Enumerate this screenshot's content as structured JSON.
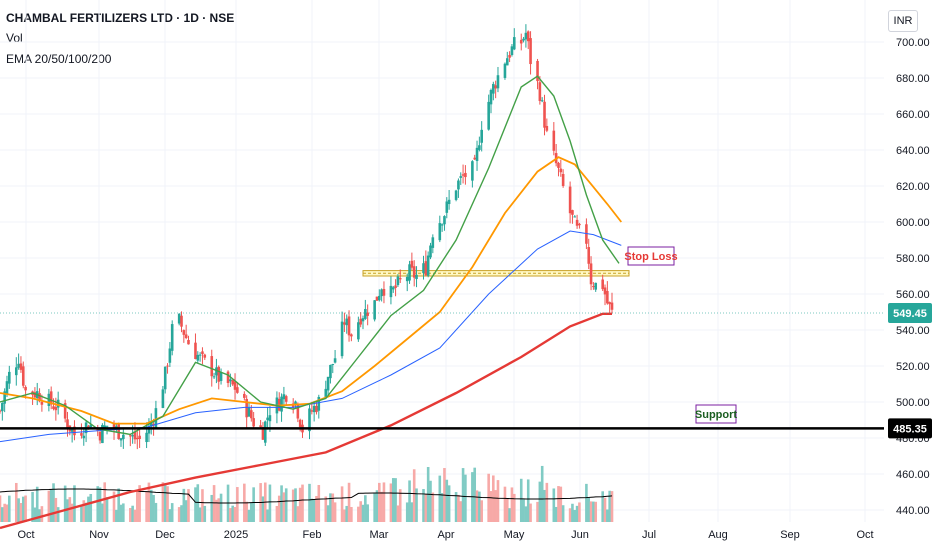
{
  "header": {
    "title": "CHAMBAL FERTILIZERS LTD · 1D · NSE",
    "vol_label": "Vol",
    "ema_label": "EMA 20/50/100/200"
  },
  "currency": "INR",
  "colors": {
    "up": "#26a69a",
    "down": "#ef5350",
    "ema20": "#43a047",
    "ema50": "#ff9800",
    "ema100": "#2962ff",
    "ema200": "#e53935",
    "vol_avg": "#000000",
    "stop_loss_zone": "#fff59d"
  },
  "chart_data": {
    "type": "candlestick",
    "symbol": "CHAMBAL FERTILIZERS LTD",
    "interval": "1D",
    "exchange": "NSE",
    "ylim": [
      440,
      710
    ],
    "y_ticks": [
      440,
      460,
      480,
      500,
      520,
      540,
      560,
      580,
      600,
      620,
      640,
      660,
      680,
      700
    ],
    "x_ticks": [
      "Oct",
      "Nov",
      "Dec",
      "2025",
      "Feb",
      "Mar",
      "Apr",
      "May",
      "Jun",
      "Jul",
      "Aug",
      "Sep",
      "Oct"
    ],
    "last_price": 549.45,
    "close_path": [
      [
        "2024-09-23",
        495
      ],
      [
        "2024-09-27",
        515
      ],
      [
        "2024-10-01",
        525
      ],
      [
        "2024-10-04",
        506
      ],
      [
        "2024-10-09",
        505
      ],
      [
        "2024-10-14",
        500
      ],
      [
        "2024-10-18",
        497
      ],
      [
        "2024-10-22",
        488
      ],
      [
        "2024-10-25",
        482
      ],
      [
        "2024-10-31",
        488
      ],
      [
        "2024-11-05",
        483
      ],
      [
        "2024-11-08",
        487
      ],
      [
        "2024-11-14",
        483
      ],
      [
        "2024-11-19",
        480
      ],
      [
        "2024-11-22",
        479
      ],
      [
        "2024-11-26",
        485
      ],
      [
        "2024-11-29",
        495
      ],
      [
        "2024-12-03",
        515
      ],
      [
        "2024-12-06",
        540
      ],
      [
        "2024-12-09",
        545
      ],
      [
        "2024-12-13",
        533
      ],
      [
        "2024-12-18",
        524
      ],
      [
        "2024-12-23",
        518
      ],
      [
        "2024-12-27",
        512
      ],
      [
        "2025-01-02",
        508
      ],
      [
        "2025-01-07",
        496
      ],
      [
        "2025-01-10",
        489
      ],
      [
        "2025-01-14",
        484
      ],
      [
        "2025-01-17",
        496
      ],
      [
        "2025-01-21",
        500
      ],
      [
        "2025-01-24",
        505
      ],
      [
        "2025-01-28",
        500
      ],
      [
        "2025-01-31",
        485
      ],
      [
        "2025-02-04",
        495
      ],
      [
        "2025-02-07",
        500
      ],
      [
        "2025-02-11",
        515
      ],
      [
        "2025-02-14",
        525
      ],
      [
        "2025-02-18",
        545
      ],
      [
        "2025-02-21",
        538
      ],
      [
        "2025-02-25",
        548
      ],
      [
        "2025-03-03",
        555
      ],
      [
        "2025-03-06",
        565
      ],
      [
        "2025-03-10",
        560
      ],
      [
        "2025-03-13",
        565
      ],
      [
        "2025-03-18",
        572
      ],
      [
        "2025-03-21",
        570
      ],
      [
        "2025-03-25",
        575
      ],
      [
        "2025-03-28",
        595
      ],
      [
        "2025-04-02",
        605
      ],
      [
        "2025-04-07",
        620
      ],
      [
        "2025-04-10",
        625
      ],
      [
        "2025-04-15",
        630
      ],
      [
        "2025-04-18",
        655
      ],
      [
        "2025-04-23",
        675
      ],
      [
        "2025-04-28",
        690
      ],
      [
        "2025-05-02",
        698
      ],
      [
        "2025-05-05",
        700
      ],
      [
        "2025-05-07",
        705
      ],
      [
        "2025-05-09",
        690
      ],
      [
        "2025-05-13",
        672
      ],
      [
        "2025-05-16",
        648
      ],
      [
        "2025-05-21",
        628
      ],
      [
        "2025-05-26",
        605
      ],
      [
        "2025-05-29",
        595
      ],
      [
        "2025-06-02",
        590
      ],
      [
        "2025-06-04",
        568
      ],
      [
        "2025-06-06",
        565
      ],
      [
        "2025-06-09",
        565
      ],
      [
        "2025-06-11",
        555
      ],
      [
        "2025-06-13",
        549.45
      ]
    ],
    "ema20_path": [
      [
        "2024-09-23",
        500
      ],
      [
        "2024-10-07",
        505
      ],
      [
        "2024-10-21",
        498
      ],
      [
        "2024-11-04",
        485
      ],
      [
        "2024-11-18",
        482
      ],
      [
        "2024-12-02",
        492
      ],
      [
        "2024-12-16",
        522
      ],
      [
        "2024-12-30",
        515
      ],
      [
        "2025-01-13",
        500
      ],
      [
        "2025-01-27",
        496
      ],
      [
        "2025-02-10",
        502
      ],
      [
        "2025-02-24",
        525
      ],
      [
        "2025-03-10",
        548
      ],
      [
        "2025-03-24",
        562
      ],
      [
        "2025-04-07",
        590
      ],
      [
        "2025-04-21",
        630
      ],
      [
        "2025-05-05",
        675
      ],
      [
        "2025-05-12",
        681
      ],
      [
        "2025-05-19",
        670
      ],
      [
        "2025-05-26",
        645
      ],
      [
        "2025-06-02",
        615
      ],
      [
        "2025-06-09",
        590
      ],
      [
        "2025-06-16",
        577
      ]
    ],
    "ema50_path": [
      [
        "2024-09-23",
        505
      ],
      [
        "2024-10-07",
        502
      ],
      [
        "2024-10-28",
        495
      ],
      [
        "2024-11-11",
        488
      ],
      [
        "2024-11-25",
        488
      ],
      [
        "2024-12-09",
        496
      ],
      [
        "2024-12-23",
        502
      ],
      [
        "2025-01-06",
        500
      ],
      [
        "2025-01-20",
        498
      ],
      [
        "2025-02-03",
        499
      ],
      [
        "2025-02-17",
        506
      ],
      [
        "2025-03-03",
        520
      ],
      [
        "2025-03-17",
        535
      ],
      [
        "2025-03-31",
        550
      ],
      [
        "2025-04-14",
        575
      ],
      [
        "2025-04-28",
        605
      ],
      [
        "2025-05-12",
        628
      ],
      [
        "2025-05-21",
        636
      ],
      [
        "2025-05-28",
        632
      ],
      [
        "2025-06-04",
        621
      ],
      [
        "2025-06-11",
        610
      ],
      [
        "2025-06-17",
        600
      ]
    ],
    "ema100_path": [
      [
        "2024-09-23",
        478
      ],
      [
        "2024-10-14",
        482
      ],
      [
        "2024-11-04",
        484
      ],
      [
        "2024-11-25",
        486
      ],
      [
        "2024-12-16",
        494
      ],
      [
        "2025-01-06",
        497
      ],
      [
        "2025-01-27",
        497
      ],
      [
        "2025-02-17",
        502
      ],
      [
        "2025-03-10",
        515
      ],
      [
        "2025-03-31",
        530
      ],
      [
        "2025-04-21",
        560
      ],
      [
        "2025-05-12",
        585
      ],
      [
        "2025-05-26",
        595
      ],
      [
        "2025-06-05",
        593
      ],
      [
        "2025-06-17",
        587
      ]
    ],
    "ema200_path": [
      [
        "2024-09-23",
        430
      ],
      [
        "2024-10-21",
        440
      ],
      [
        "2024-11-18",
        450
      ],
      [
        "2024-12-16",
        458
      ],
      [
        "2025-01-13",
        465
      ],
      [
        "2025-02-10",
        472
      ],
      [
        "2025-03-10",
        487
      ],
      [
        "2025-04-07",
        505
      ],
      [
        "2025-05-05",
        525
      ],
      [
        "2025-05-26",
        542
      ],
      [
        "2025-06-09",
        549
      ],
      [
        "2025-06-13",
        549
      ]
    ],
    "volume_bars_count": 180,
    "annotations": [
      {
        "label": "Stop Loss",
        "zone": [
          570,
          573
        ],
        "style": "yellow-band"
      },
      {
        "label": "Support",
        "level": 485.35,
        "style": "horizontal-line"
      }
    ]
  }
}
